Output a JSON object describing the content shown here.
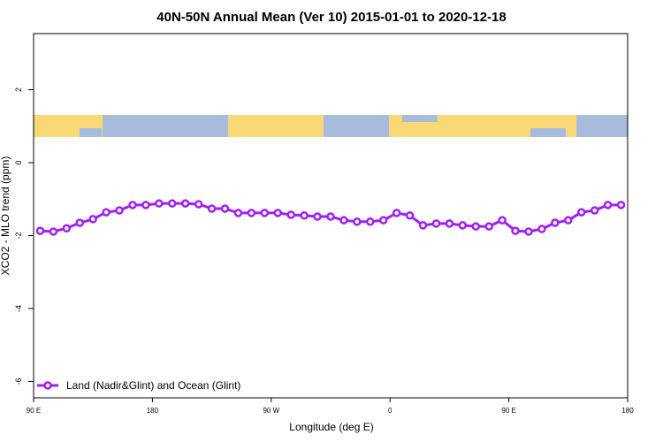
{
  "chart_data": {
    "type": "line",
    "title": "40N-50N Annual Mean (Ver 10)   2015-01-01 to 2020-12-18",
    "x_label": "Longitude (deg E)",
    "y_label": "XCO2 - MLO trend (ppm)",
    "xlim": [
      90,
      540
    ],
    "ylim": [
      -6.45,
      3.54
    ],
    "xticks": [
      {
        "value": 90,
        "label": "90 E"
      },
      180,
      {
        "value": 270,
        "label": "90 W"
      },
      {
        "value": 360,
        "label": "0"
      },
      {
        "value": 450,
        "label": "90 E"
      },
      {
        "value": 540,
        "label": "180"
      }
    ],
    "yticks": [
      -6,
      -4,
      -2,
      0,
      2
    ],
    "legend_position": "bottom-left",
    "series": [
      {
        "name": "Land (Nadir&Glint) and Ocean (Glint)",
        "color": "#a020f0",
        "x": [
          95,
          105,
          115,
          125,
          135,
          145,
          155,
          165,
          175,
          185,
          195,
          205,
          215,
          225,
          235,
          245,
          255,
          265,
          275,
          285,
          295,
          305,
          315,
          325,
          335,
          345,
          355,
          365,
          375,
          385,
          395,
          405,
          415,
          425,
          435,
          445,
          455,
          465,
          475,
          485,
          495,
          505,
          515,
          525,
          535
        ],
        "values": [
          -1.87,
          -1.89,
          -1.8,
          -1.65,
          -1.55,
          -1.36,
          -1.31,
          -1.16,
          -1.16,
          -1.12,
          -1.12,
          -1.12,
          -1.14,
          -1.26,
          -1.26,
          -1.38,
          -1.38,
          -1.38,
          -1.38,
          -1.43,
          -1.45,
          -1.48,
          -1.48,
          -1.58,
          -1.62,
          -1.62,
          -1.58,
          -1.38,
          -1.45,
          -1.72,
          -1.67,
          -1.67,
          -1.72,
          -1.75,
          -1.75,
          -1.58,
          -1.87,
          -1.89,
          -1.82,
          -1.65,
          -1.58,
          -1.36,
          -1.31,
          -1.16,
          -1.16
        ]
      }
    ]
  }
}
